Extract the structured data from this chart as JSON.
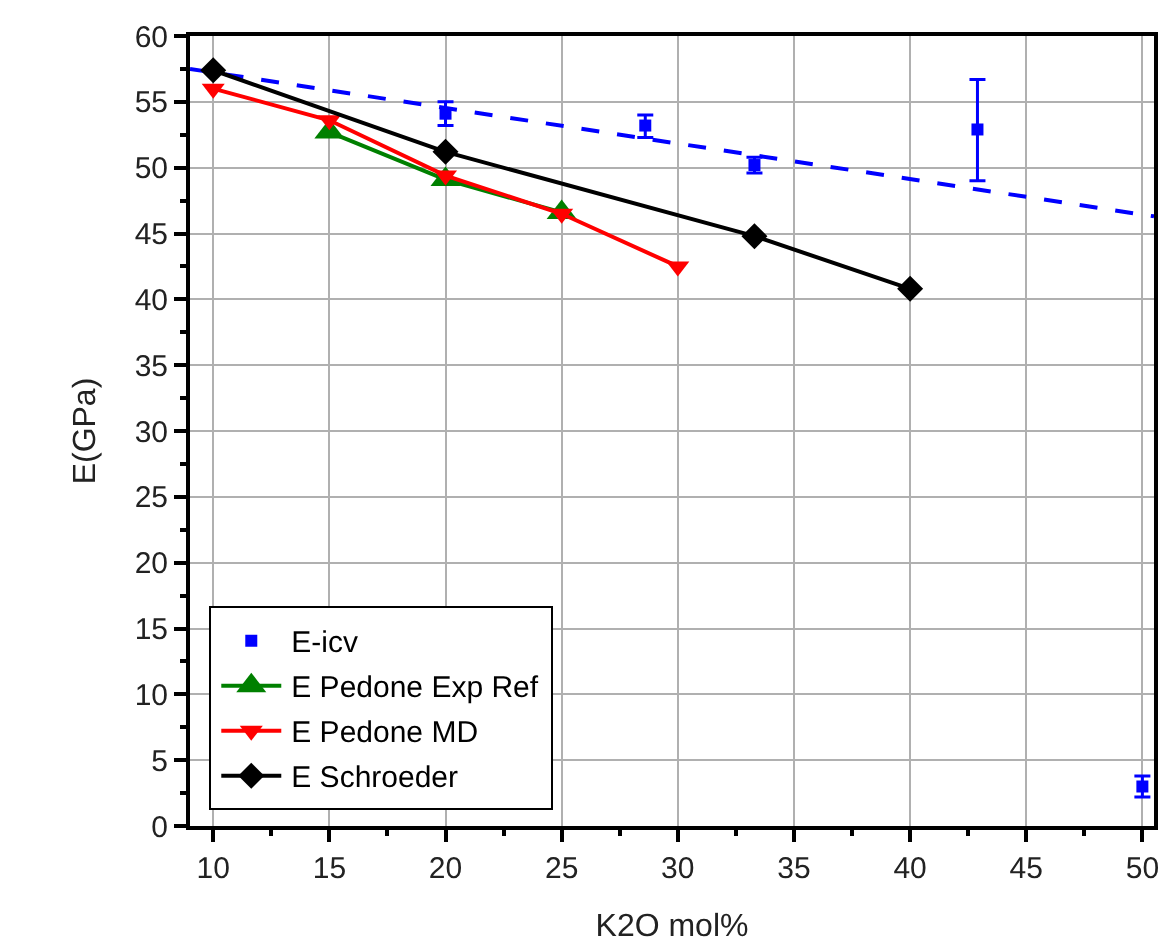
{
  "chart_data": {
    "type": "line",
    "xlabel": "K2O mol%",
    "ylabel": "E(GPa)",
    "xlim": [
      9,
      50.5
    ],
    "xticks": [
      10,
      15,
      20,
      25,
      30,
      35,
      40,
      45,
      50
    ],
    "ylim": [
      0,
      60
    ],
    "yticks": [
      0,
      5,
      10,
      15,
      20,
      25,
      30,
      35,
      40,
      45,
      50,
      55,
      60
    ],
    "grid": true,
    "legend": "bottom left",
    "series": [
      {
        "name": "E-icv",
        "type": "scatter",
        "marker": "square",
        "color": "#0000ff",
        "x": [
          20,
          28.6,
          33.3,
          42.9,
          50
        ],
        "values": [
          54.1,
          53.2,
          50.2,
          52.9,
          3.0
        ],
        "errors": [
          [
            53.2,
            55.0
          ],
          [
            52.3,
            54.0
          ],
          [
            49.6,
            50.8
          ],
          [
            49.0,
            56.7
          ],
          [
            2.2,
            3.8
          ]
        ]
      },
      {
        "type": "line",
        "line_style": "dashed",
        "marker": "none",
        "color": "#0000ff",
        "x": [
          9,
          50.5
        ],
        "values": [
          57.5,
          46.3
        ]
      },
      {
        "name": "E Pedone Exp Ref",
        "marker": "triangle",
        "color": "#008000",
        "x": [
          15,
          20,
          25
        ],
        "values": [
          52.7,
          49.1,
          46.6
        ]
      },
      {
        "name": "E Pedone MD",
        "marker": "triangle-down",
        "color": "#ff0000",
        "x": [
          10,
          15,
          20,
          25,
          30
        ],
        "values": [
          56.0,
          53.6,
          49.4,
          46.5,
          42.5
        ]
      },
      {
        "name": "E Schroeder",
        "marker": "diamond",
        "color": "#000000",
        "x": [
          10,
          20,
          33.3,
          40
        ],
        "values": [
          57.4,
          51.2,
          44.8,
          40.8
        ]
      }
    ]
  }
}
